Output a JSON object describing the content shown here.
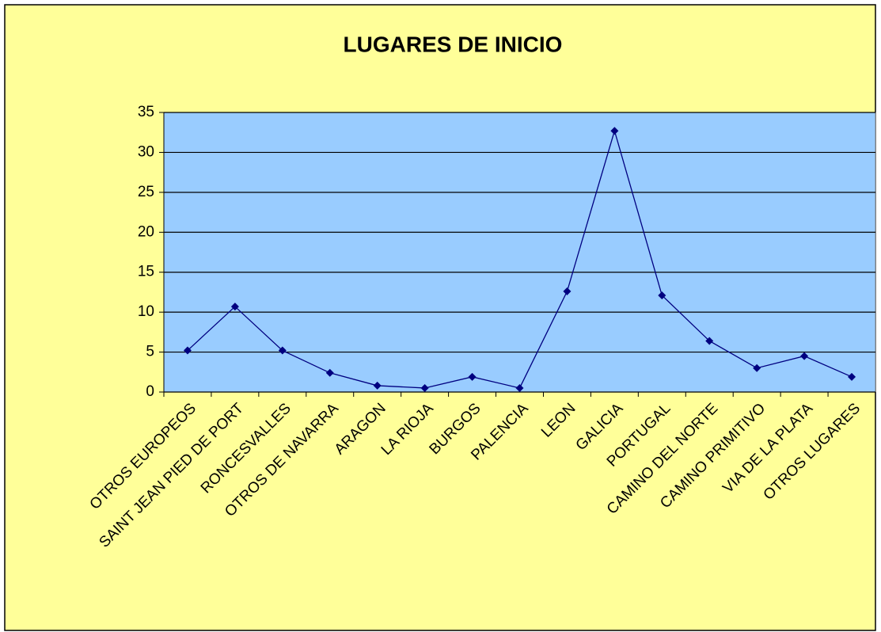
{
  "chart_data": {
    "type": "line",
    "title": "LUGARES DE INICIO",
    "categories": [
      "OTROS EUROPEOS",
      "SAINT JEAN PIED DE PORT",
      "RONCESVALLES",
      "OTROS DE NAVARRA",
      "ARAGON",
      "LA RIOJA",
      "BURGOS",
      "PALENCIA",
      "LEON",
      "GALICIA",
      "PORTUGAL",
      "CAMINO DEL NORTE",
      "CAMINO PRIMITIVO",
      "VIA DE LA PLATA",
      "OTROS LUGARES"
    ],
    "values": [
      5.2,
      10.7,
      5.2,
      2.4,
      0.8,
      0.5,
      1.9,
      0.5,
      12.6,
      32.7,
      12.1,
      6.4,
      3.0,
      4.5,
      1.9
    ],
    "color": "#000080",
    "ylim": [
      0,
      35
    ],
    "yticks": [
      0,
      5,
      10,
      15,
      20,
      25,
      30,
      35
    ],
    "grid": true
  }
}
